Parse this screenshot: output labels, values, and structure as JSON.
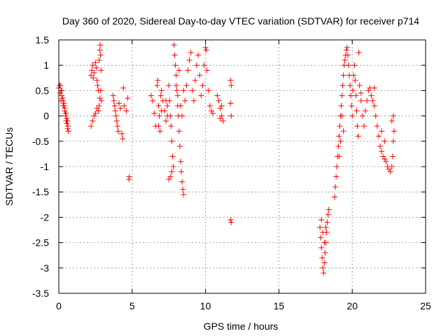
{
  "chart_data": {
    "type": "scatter",
    "title": "Day 360 of 2020, Sidereal Day-to-day VTEC variation (SDTVAR) for receiver p714",
    "xlabel": "GPS time / hours",
    "ylabel": "SDTVAR / TECUs",
    "xlim": [
      0,
      25
    ],
    "ylim": [
      -3.5,
      1.5
    ],
    "xticks": [
      0,
      5,
      10,
      15,
      20,
      25
    ],
    "yticks": [
      -3.5,
      -3,
      -2.5,
      -2,
      -1.5,
      -1,
      -0.5,
      0,
      0.5,
      1,
      1.5
    ],
    "xtick_labels": [
      "0",
      "5",
      "10",
      "15",
      "20",
      "25"
    ],
    "ytick_labels": [
      "-3.5",
      "-3",
      "-2.5",
      "-2",
      "-1.5",
      "-1",
      "-0.5",
      "0",
      "0.5",
      "1",
      "1.5"
    ],
    "grid": true,
    "marker": "+",
    "color": "#ff0000",
    "series": [
      {
        "name": "SDTVAR",
        "points": [
          [
            0.0,
            0.55
          ],
          [
            0.05,
            0.6
          ],
          [
            0.1,
            0.45
          ],
          [
            0.15,
            0.3
          ],
          [
            0.2,
            0.5
          ],
          [
            0.25,
            0.35
          ],
          [
            0.3,
            0.2
          ],
          [
            0.35,
            0.25
          ],
          [
            0.4,
            0.1
          ],
          [
            0.45,
            0.0
          ],
          [
            0.5,
            -0.1
          ],
          [
            0.55,
            -0.15
          ],
          [
            0.6,
            -0.25
          ],
          [
            0.65,
            -0.3
          ],
          [
            0.1,
            0.6
          ],
          [
            0.2,
            0.4
          ],
          [
            0.3,
            0.3
          ],
          [
            0.4,
            0.15
          ],
          [
            0.5,
            0.05
          ],
          [
            0.6,
            -0.1
          ],
          [
            0.15,
            0.5
          ],
          [
            0.35,
            0.2
          ],
          [
            0.45,
            0.05
          ],
          [
            0.55,
            -0.05
          ],
          [
            0.62,
            -0.2
          ],
          [
            2.2,
            0.8
          ],
          [
            2.25,
            0.9
          ],
          [
            2.3,
            1.0
          ],
          [
            2.35,
            0.75
          ],
          [
            2.4,
            0.85
          ],
          [
            2.5,
            1.05
          ],
          [
            2.55,
            0.95
          ],
          [
            2.6,
            0.7
          ],
          [
            2.65,
            0.6
          ],
          [
            2.7,
            0.5
          ],
          [
            2.75,
            1.1
          ],
          [
            2.8,
            1.3
          ],
          [
            2.82,
            1.4
          ],
          [
            2.85,
            1.2
          ],
          [
            2.88,
            0.9
          ],
          [
            2.9,
            0.3
          ],
          [
            2.85,
            0.5
          ],
          [
            2.8,
            0.35
          ],
          [
            2.75,
            0.2
          ],
          [
            2.7,
            0.1
          ],
          [
            2.6,
            0.15
          ],
          [
            2.5,
            0.05
          ],
          [
            2.4,
            0.0
          ],
          [
            2.3,
            -0.1
          ],
          [
            2.2,
            -0.2
          ],
          [
            3.7,
            0.4
          ],
          [
            3.75,
            0.3
          ],
          [
            3.8,
            0.2
          ],
          [
            3.85,
            0.1
          ],
          [
            3.9,
            0.0
          ],
          [
            3.95,
            -0.1
          ],
          [
            4.0,
            -0.2
          ],
          [
            4.05,
            -0.3
          ],
          [
            4.1,
            0.25
          ],
          [
            4.2,
            0.15
          ],
          [
            4.3,
            -0.35
          ],
          [
            4.35,
            -0.45
          ],
          [
            4.4,
            0.55
          ],
          [
            4.45,
            0.2
          ],
          [
            4.6,
            0.1
          ],
          [
            4.7,
            0.35
          ],
          [
            4.8,
            -1.2
          ],
          [
            4.78,
            -1.25
          ],
          [
            6.3,
            0.4
          ],
          [
            6.4,
            0.3
          ],
          [
            6.5,
            0.05
          ],
          [
            6.6,
            -0.2
          ],
          [
            6.7,
            0.6
          ],
          [
            6.75,
            0.7
          ],
          [
            6.8,
            0.2
          ],
          [
            6.85,
            0.0
          ],
          [
            6.9,
            -0.3
          ],
          [
            6.95,
            0.4
          ],
          [
            7.0,
            0.5
          ],
          [
            7.1,
            0.3
          ],
          [
            7.2,
            0.1
          ],
          [
            7.3,
            -0.1
          ],
          [
            7.4,
            0.2
          ],
          [
            7.5,
            0.6
          ],
          [
            7.55,
            0.3
          ],
          [
            7.6,
            0.0
          ],
          [
            7.65,
            -0.2
          ],
          [
            7.7,
            -0.5
          ],
          [
            7.75,
            -0.8
          ],
          [
            7.8,
            -1.0
          ],
          [
            7.7,
            -1.1
          ],
          [
            7.6,
            -1.2
          ],
          [
            7.5,
            -1.25
          ],
          [
            7.85,
            1.4
          ],
          [
            7.9,
            1.2
          ],
          [
            7.95,
            1.0
          ],
          [
            8.0,
            0.8
          ],
          [
            8.05,
            0.5
          ],
          [
            8.1,
            0.2
          ],
          [
            8.15,
            0.0
          ],
          [
            8.2,
            -0.3
          ],
          [
            8.25,
            -0.6
          ],
          [
            8.3,
            -0.9
          ],
          [
            8.35,
            -1.1
          ],
          [
            8.4,
            -1.3
          ],
          [
            8.45,
            -1.45
          ],
          [
            8.5,
            -1.55
          ],
          [
            8.6,
            0.3
          ],
          [
            8.7,
            0.6
          ],
          [
            8.8,
            0.9
          ],
          [
            8.9,
            1.1
          ],
          [
            9.0,
            1.25
          ],
          [
            9.1,
            0.5
          ],
          [
            9.2,
            0.3
          ],
          [
            9.3,
            0.7
          ],
          [
            9.4,
            1.0
          ],
          [
            9.5,
            1.2
          ],
          [
            9.6,
            0.8
          ],
          [
            9.7,
            0.4
          ],
          [
            9.8,
            0.6
          ],
          [
            9.9,
            1.0
          ],
          [
            10.0,
            1.35
          ],
          [
            10.05,
            1.3
          ],
          [
            10.1,
            0.9
          ],
          [
            10.2,
            0.5
          ],
          [
            10.3,
            0.2
          ],
          [
            10.4,
            0.1
          ],
          [
            10.5,
            0.05
          ],
          [
            8.0,
            0.6
          ],
          [
            8.1,
            0.4
          ],
          [
            8.2,
            0.9
          ],
          [
            8.3,
            0.2
          ],
          [
            8.4,
            0.0
          ],
          [
            8.5,
            0.5
          ],
          [
            7.3,
            0.3
          ],
          [
            7.4,
            0.0
          ],
          [
            7.0,
            0.1
          ],
          [
            6.8,
            -0.2
          ],
          [
            10.8,
            0.4
          ],
          [
            10.9,
            0.3
          ],
          [
            11.0,
            0.15
          ],
          [
            11.1,
            0.0
          ],
          [
            11.2,
            -0.1
          ],
          [
            11.0,
            -0.05
          ],
          [
            11.1,
            0.2
          ],
          [
            11.7,
            0.7
          ],
          [
            11.75,
            0.6
          ],
          [
            11.7,
            0.25
          ],
          [
            11.75,
            0.0
          ],
          [
            11.7,
            -2.05
          ],
          [
            11.75,
            -2.1
          ],
          [
            17.8,
            -2.2
          ],
          [
            17.85,
            -2.4
          ],
          [
            17.9,
            -2.6
          ],
          [
            17.95,
            -2.8
          ],
          [
            18.0,
            -3.0
          ],
          [
            18.05,
            -3.1
          ],
          [
            18.1,
            -2.9
          ],
          [
            18.15,
            -2.7
          ],
          [
            18.2,
            -2.5
          ],
          [
            18.25,
            -2.3
          ],
          [
            18.3,
            -2.1
          ],
          [
            18.35,
            -1.95
          ],
          [
            18.4,
            -1.85
          ],
          [
            18.0,
            -2.3
          ],
          [
            18.1,
            -2.5
          ],
          [
            18.2,
            -2.2
          ],
          [
            17.9,
            -2.05
          ],
          [
            18.8,
            -1.6
          ],
          [
            18.85,
            -1.4
          ],
          [
            18.9,
            -1.2
          ],
          [
            18.95,
            -1.0
          ],
          [
            19.0,
            -0.8
          ],
          [
            19.05,
            -0.6
          ],
          [
            19.1,
            -0.4
          ],
          [
            19.15,
            -0.2
          ],
          [
            19.2,
            0.0
          ],
          [
            19.25,
            0.2
          ],
          [
            19.3,
            0.4
          ],
          [
            19.35,
            0.6
          ],
          [
            19.4,
            0.8
          ],
          [
            19.45,
            1.0
          ],
          [
            19.5,
            1.1
          ],
          [
            19.55,
            1.2
          ],
          [
            19.6,
            1.3
          ],
          [
            19.65,
            1.35
          ],
          [
            19.7,
            1.2
          ],
          [
            19.75,
            1.0
          ],
          [
            19.8,
            0.8
          ],
          [
            19.85,
            0.6
          ],
          [
            19.9,
            0.4
          ],
          [
            19.95,
            0.2
          ],
          [
            20.0,
            0.0
          ],
          [
            20.05,
            0.5
          ],
          [
            20.1,
            0.8
          ],
          [
            20.15,
            1.0
          ],
          [
            20.2,
            0.7
          ],
          [
            20.25,
            0.4
          ],
          [
            20.3,
            0.1
          ],
          [
            20.35,
            -0.2
          ],
          [
            20.4,
            -0.4
          ],
          [
            20.45,
            1.25
          ],
          [
            20.5,
            0.6
          ],
          [
            20.6,
            0.3
          ],
          [
            20.7,
            0.0
          ],
          [
            20.8,
            -0.2
          ],
          [
            20.9,
            0.1
          ],
          [
            21.0,
            0.3
          ],
          [
            21.1,
            0.5
          ],
          [
            21.2,
            0.55
          ],
          [
            21.3,
            0.4
          ],
          [
            21.4,
            0.3
          ],
          [
            21.5,
            0.2
          ],
          [
            21.6,
            0.0
          ],
          [
            21.7,
            -0.2
          ],
          [
            21.8,
            -0.4
          ],
          [
            21.9,
            -0.6
          ],
          [
            22.0,
            -0.7
          ],
          [
            22.1,
            -0.8
          ],
          [
            22.2,
            -0.85
          ],
          [
            22.3,
            -0.9
          ],
          [
            22.4,
            -1.0
          ],
          [
            22.5,
            -1.05
          ],
          [
            22.6,
            -1.1
          ],
          [
            22.7,
            -1.0
          ],
          [
            22.75,
            -0.8
          ],
          [
            22.8,
            -0.5
          ],
          [
            22.85,
            -0.3
          ],
          [
            22.7,
            -0.1
          ],
          [
            22.8,
            0.0
          ],
          [
            19.3,
            0.0
          ],
          [
            19.4,
            -0.3
          ],
          [
            19.2,
            -0.5
          ],
          [
            19.1,
            -0.8
          ],
          [
            20.6,
            0.45
          ],
          [
            21.5,
            0.55
          ],
          [
            22.0,
            -0.3
          ],
          [
            22.2,
            -0.5
          ]
        ]
      }
    ]
  }
}
